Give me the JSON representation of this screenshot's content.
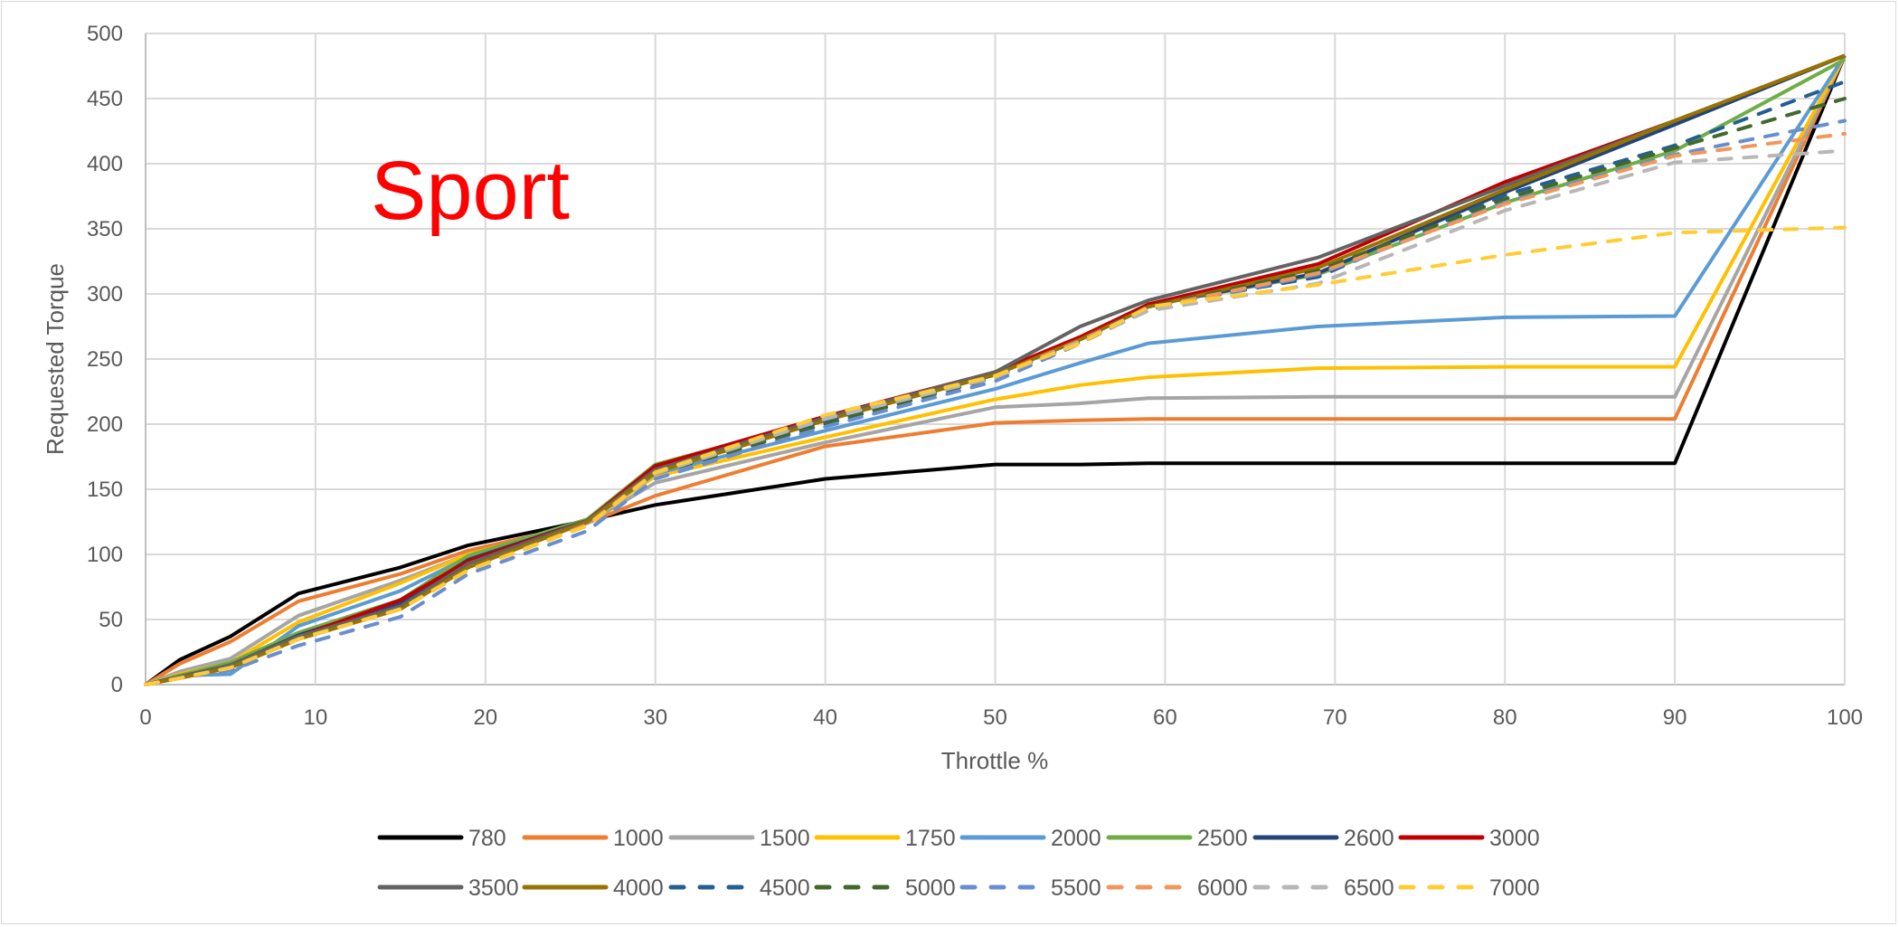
{
  "chart_data": {
    "type": "line",
    "title": "",
    "annotation": "Sport",
    "annotation_color": "#ff0000",
    "xlabel": "Throttle %",
    "ylabel": "Requested Torque",
    "xlim": [
      0,
      100
    ],
    "ylim": [
      0,
      500
    ],
    "xticks": [
      0,
      10,
      20,
      30,
      40,
      50,
      60,
      70,
      80,
      90,
      100
    ],
    "yticks": [
      0,
      50,
      100,
      150,
      200,
      250,
      300,
      350,
      400,
      450,
      500
    ],
    "grid": true,
    "legend_position": "bottom",
    "x": [
      0,
      2,
      5,
      9,
      15,
      19,
      26,
      30,
      40,
      50,
      55,
      59,
      69,
      80,
      90,
      100
    ],
    "series": [
      {
        "name": "780",
        "color": "#000000",
        "dash": false,
        "values": [
          0,
          19,
          37,
          70,
          90,
          107,
          126,
          138,
          158,
          169,
          169,
          170,
          170,
          170,
          170,
          483
        ]
      },
      {
        "name": "1000",
        "color": "#ed7d31",
        "dash": false,
        "values": [
          0,
          16,
          33,
          64,
          85,
          103,
          124,
          145,
          183,
          201,
          203,
          204,
          204,
          204,
          204,
          483
        ]
      },
      {
        "name": "1500",
        "color": "#a5a5a5",
        "dash": false,
        "values": [
          0,
          10,
          20,
          53,
          80,
          100,
          124,
          155,
          186,
          213,
          216,
          220,
          221,
          221,
          221,
          483
        ]
      },
      {
        "name": "1750",
        "color": "#ffc000",
        "dash": false,
        "values": [
          0,
          8,
          17,
          48,
          78,
          100,
          125,
          160,
          190,
          219,
          230,
          236,
          243,
          244,
          244,
          483
        ]
      },
      {
        "name": "2000",
        "color": "#5b9bd5",
        "dash": false,
        "values": [
          0,
          7,
          8,
          45,
          72,
          98,
          125,
          162,
          195,
          227,
          247,
          262,
          275,
          282,
          283,
          483
        ]
      },
      {
        "name": "2500",
        "color": "#70ad47",
        "dash": false,
        "values": [
          0,
          7,
          17,
          40,
          65,
          99,
          127,
          169,
          204,
          240,
          265,
          291,
          315,
          370,
          410,
          480
        ]
      },
      {
        "name": "2600",
        "color": "#264478",
        "dash": false,
        "values": [
          0,
          6,
          15,
          38,
          63,
          96,
          126,
          166,
          203,
          238,
          265,
          291,
          316,
          378,
          430,
          483
        ]
      },
      {
        "name": "3000",
        "color": "#c00000",
        "dash": false,
        "values": [
          0,
          6,
          15,
          37,
          65,
          95,
          126,
          168,
          206,
          240,
          267,
          292,
          323,
          386,
          433,
          483
        ]
      },
      {
        "name": "3500",
        "color": "#636363",
        "dash": false,
        "values": [
          0,
          6,
          15,
          37,
          60,
          93,
          126,
          165,
          205,
          240,
          275,
          295,
          328,
          383,
          433,
          483
        ]
      },
      {
        "name": "4000",
        "color": "#997300",
        "dash": false,
        "values": [
          0,
          5,
          13,
          35,
          58,
          90,
          125,
          163,
          203,
          238,
          265,
          290,
          320,
          380,
          433,
          483
        ]
      },
      {
        "name": "4500",
        "color": "#255e91",
        "dash": true,
        "values": [
          0,
          5,
          13,
          35,
          58,
          88,
          123,
          162,
          202,
          237,
          264,
          290,
          313,
          376,
          414,
          463
        ]
      },
      {
        "name": "5000",
        "color": "#43682b",
        "dash": true,
        "values": [
          0,
          5,
          13,
          35,
          58,
          88,
          123,
          162,
          200,
          236,
          263,
          290,
          318,
          373,
          412,
          450
        ]
      },
      {
        "name": "5500",
        "color": "#698ed0",
        "dash": true,
        "values": [
          0,
          5,
          11,
          30,
          52,
          85,
          118,
          158,
          198,
          233,
          262,
          288,
          315,
          370,
          407,
          433
        ]
      },
      {
        "name": "6000",
        "color": "#f1975a",
        "dash": true,
        "values": [
          0,
          5,
          13,
          35,
          58,
          88,
          123,
          163,
          204,
          237,
          264,
          289,
          316,
          369,
          406,
          423
        ]
      },
      {
        "name": "6500",
        "color": "#b7b7b7",
        "dash": true,
        "values": [
          0,
          5,
          13,
          35,
          58,
          88,
          122,
          162,
          204,
          236,
          263,
          287,
          308,
          364,
          401,
          410
        ]
      },
      {
        "name": "7000",
        "color": "#ffcd33",
        "dash": true,
        "values": [
          0,
          5,
          13,
          35,
          58,
          88,
          122,
          163,
          207,
          237,
          262,
          290,
          307,
          330,
          347,
          351
        ]
      }
    ]
  }
}
